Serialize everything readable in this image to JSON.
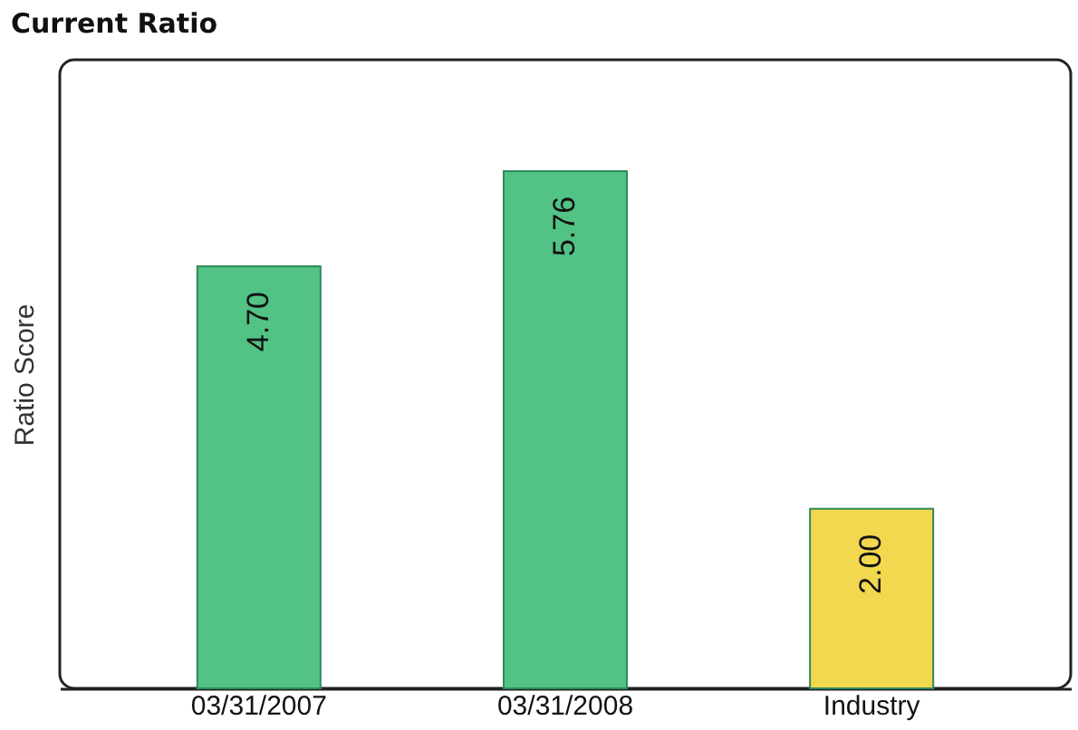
{
  "chart_data": {
    "type": "bar",
    "title": "Current Ratio",
    "ylabel": "Ratio Score",
    "categories": [
      "03/31/2007",
      "03/31/2008",
      "Industry"
    ],
    "values": [
      4.7,
      5.76,
      2.0
    ],
    "colors": [
      "#52c285",
      "#52c285",
      "#f2d84e"
    ],
    "value_labels": [
      "4.70",
      "5.76",
      "2.00"
    ],
    "ylim": [
      0,
      7
    ],
    "tick_labels": "x",
    "grid": false
  }
}
